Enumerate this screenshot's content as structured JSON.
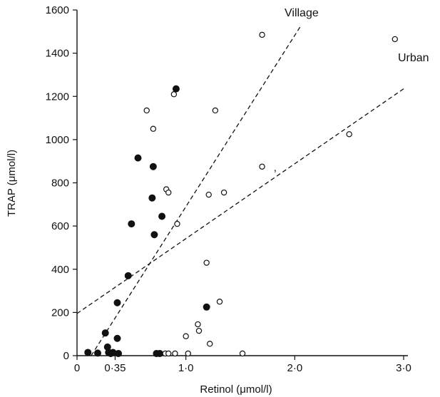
{
  "chart_data": {
    "type": "scatter",
    "xlabel": "Retinol (μmol/l)",
    "ylabel": "TRAP (μmol/l)",
    "xlim": [
      0,
      3.0
    ],
    "ylim": [
      0,
      1600
    ],
    "x_ticks": [
      {
        "value": 0,
        "label": "0"
      },
      {
        "value": 0.35,
        "label": "0·35"
      },
      {
        "value": 1.0,
        "label": "1·0"
      },
      {
        "value": 2.0,
        "label": "2·0"
      },
      {
        "value": 3.0,
        "label": "3·0"
      }
    ],
    "y_ticks": [
      0,
      200,
      400,
      600,
      800,
      1000,
      1200,
      1400,
      1600
    ],
    "grid": false,
    "series": [
      {
        "marker": "filled-circle",
        "color": "#111111",
        "points": [
          [
            0.1,
            15
          ],
          [
            0.19,
            12
          ],
          [
            0.26,
            105
          ],
          [
            0.28,
            40
          ],
          [
            0.29,
            15
          ],
          [
            0.31,
            10
          ],
          [
            0.33,
            15
          ],
          [
            0.37,
            245
          ],
          [
            0.37,
            80
          ],
          [
            0.38,
            10
          ],
          [
            0.47,
            370
          ],
          [
            0.5,
            610
          ],
          [
            0.56,
            915
          ],
          [
            0.69,
            730
          ],
          [
            0.7,
            875
          ],
          [
            0.71,
            560
          ],
          [
            0.73,
            10
          ],
          [
            0.76,
            10
          ],
          [
            0.78,
            645
          ],
          [
            0.91,
            1235
          ],
          [
            1.19,
            225
          ]
        ]
      },
      {
        "marker": "open-circle",
        "color": "#111111",
        "points": [
          [
            0.64,
            1135
          ],
          [
            0.7,
            1050
          ],
          [
            0.81,
            10
          ],
          [
            0.82,
            770
          ],
          [
            0.84,
            755
          ],
          [
            0.84,
            10
          ],
          [
            0.89,
            1210
          ],
          [
            0.9,
            10
          ],
          [
            0.92,
            610
          ],
          [
            1.0,
            90
          ],
          [
            1.02,
            10
          ],
          [
            1.11,
            145
          ],
          [
            1.12,
            115
          ],
          [
            1.19,
            430
          ],
          [
            1.21,
            745
          ],
          [
            1.22,
            55
          ],
          [
            1.27,
            1135
          ],
          [
            1.31,
            250
          ],
          [
            1.35,
            755
          ],
          [
            1.52,
            10
          ],
          [
            1.7,
            1485
          ],
          [
            1.7,
            875
          ],
          [
            2.5,
            1025
          ],
          [
            2.92,
            1465
          ]
        ]
      }
    ],
    "lines": [
      {
        "name": "Village",
        "style": "dashed",
        "from": [
          0.13,
          0
        ],
        "to": [
          2.06,
          1530
        ]
      },
      {
        "name": "Urban",
        "style": "dashed",
        "from": [
          0.0,
          195
        ],
        "to": [
          3.0,
          1235
        ]
      }
    ],
    "annotations": [
      {
        "text": ",",
        "x": 1.82,
        "y": 855
      }
    ]
  }
}
